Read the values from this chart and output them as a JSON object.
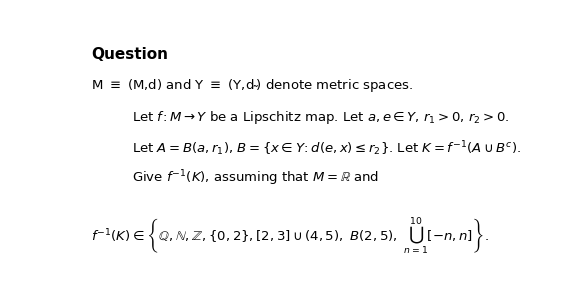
{
  "bg_color": "#ffffff",
  "title_bold": "Question",
  "font_size_title": 11,
  "font_size_body": 9.5,
  "font_size_math": 9.5
}
